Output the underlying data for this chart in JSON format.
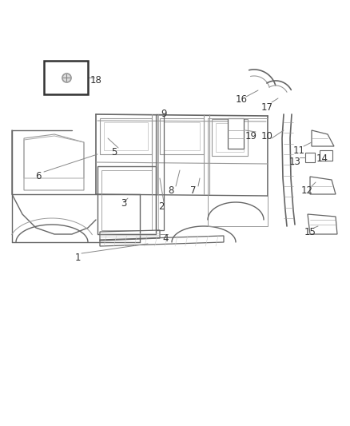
{
  "bg_color": "#ffffff",
  "line_color": "#999999",
  "dark_line": "#666666",
  "fig_width": 4.38,
  "fig_height": 5.33,
  "dpi": 100,
  "text_color": "#333333",
  "label_fontsize": 8.5
}
